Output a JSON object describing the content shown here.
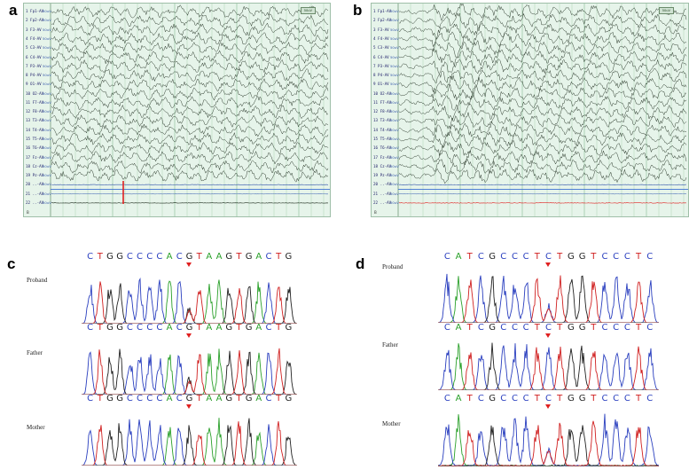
{
  "panels": {
    "a": "a",
    "b": "b",
    "c": "c",
    "d": "d"
  },
  "eeg_a": {
    "channels": [
      "1 Fp1-AV",
      "2 Fp2-AV",
      "3 F3-AV",
      "4 F4-AV",
      "5 C3-AV",
      "6 C4-AV",
      "7 P3-AV",
      "8 P4-AV",
      "9 O1-AV",
      "10 O2-AV",
      "11 F7-AV",
      "12 F8-AV",
      "13 T3-AV",
      "14 T4-AV",
      "15 T5-AV",
      "16 T6-AV",
      "17 Fz-AV",
      "18 Cz-AV",
      "19 Pz-AV",
      "20 ..-AV",
      "21 ..-AV",
      "22 ..-AV"
    ],
    "unit": "50uV",
    "footer": "B"
  },
  "eeg_b": {
    "channels": [
      "1 Fp1-AV",
      "2 Fp2-AV",
      "3 F3-AV",
      "4 F4-AV",
      "5 C3-AV",
      "6 C4-AV",
      "7 P3-AV",
      "8 P4-AV",
      "9 O1-AV",
      "10 O2-AV",
      "11 F7-AV",
      "12 F8-AV",
      "13 T3-AV",
      "14 T4-AV",
      "15 T5-AV",
      "16 T6-AV",
      "17 Fz-AV",
      "18 Cz-AV",
      "19 Pz-AV",
      "20 ..-AV",
      "21 ..-AV",
      "22 ..-AV"
    ],
    "unit": "50uV",
    "footer": "B"
  },
  "seq_c": {
    "bases": [
      "C",
      "T",
      "G",
      "G",
      "C",
      "C",
      "C",
      "C",
      "A",
      "C",
      "G",
      "T",
      "A",
      "A",
      "G",
      "T",
      "G",
      "A",
      "C",
      "T",
      "G"
    ],
    "subjects": [
      "Proband",
      "Father",
      "Mother"
    ]
  },
  "seq_d": {
    "bases": [
      "C",
      "A",
      "T",
      "C",
      "G",
      "C",
      "C",
      "C",
      "T",
      "C",
      "T",
      "G",
      "G",
      "T",
      "C",
      "C",
      "C",
      "T",
      "C"
    ],
    "subjects": [
      "Proband",
      "Father",
      "Mother"
    ]
  },
  "colors": {
    "A": "#2aa02a",
    "C": "#2a3fbf",
    "G": "#222222",
    "T": "#d02020",
    "eeg_bg": "#e6f4ea",
    "eeg_grid": "#a6cfb0",
    "trace": "#1c2a1c",
    "marker": "#e02020"
  }
}
